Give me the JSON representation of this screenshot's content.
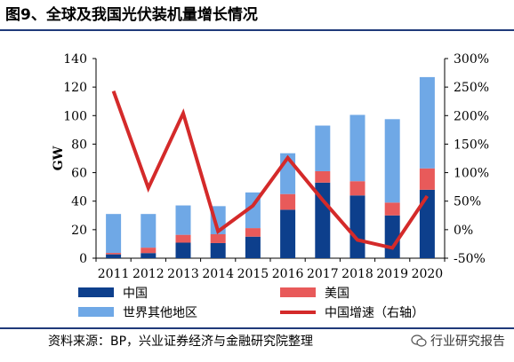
{
  "page": {
    "title": "图9、全球及我国光伏装机量增长情况",
    "source": "资料来源：BP，兴业证券经济与金融研究院整理",
    "watermark": "行业研究报告"
  },
  "colors": {
    "china": "#0d3f8c",
    "usa": "#e85a5a",
    "rest": "#6fa8e6",
    "line": "#d42a2a",
    "rule": "#1f3a7a"
  },
  "chart_data": {
    "type": "bar",
    "stacked": true,
    "title": "",
    "xlabel": "",
    "ylabel": "GW",
    "y2label": "",
    "categories": [
      "2011",
      "2012",
      "2013",
      "2014",
      "2015",
      "2016",
      "2017",
      "2018",
      "2019",
      "2020"
    ],
    "ylim": [
      0,
      140
    ],
    "yticks": [
      0,
      20,
      40,
      60,
      80,
      100,
      120,
      140
    ],
    "y2lim": [
      -50,
      300
    ],
    "y2ticks": [
      "-50%",
      "0%",
      "50%",
      "100%",
      "150%",
      "200%",
      "250%",
      "300%"
    ],
    "series": [
      {
        "name": "中国",
        "axis": "left",
        "color": "china",
        "values": [
          2.7,
          3.6,
          10.9,
          10.6,
          15.1,
          34.0,
          53.0,
          44.0,
          30.0,
          48.0
        ]
      },
      {
        "name": "美国",
        "axis": "left",
        "color": "usa",
        "values": [
          1.0,
          3.8,
          5.5,
          6.2,
          6.0,
          11.0,
          8.0,
          10.0,
          9.0,
          15.0
        ]
      },
      {
        "name": "世界其他地区",
        "axis": "left",
        "color": "rest",
        "values": [
          27.3,
          23.6,
          20.6,
          19.7,
          25.0,
          28.6,
          32.0,
          46.5,
          58.5,
          64.0
        ]
      },
      {
        "name": "中国增速（右轴）",
        "axis": "right",
        "type": "line",
        "color": "line",
        "values": [
          243,
          73,
          204,
          -3,
          42,
          126,
          52,
          -18,
          -32,
          59
        ]
      }
    ],
    "legend": {
      "placement": "bottom",
      "columns": 2
    },
    "grid": false
  }
}
